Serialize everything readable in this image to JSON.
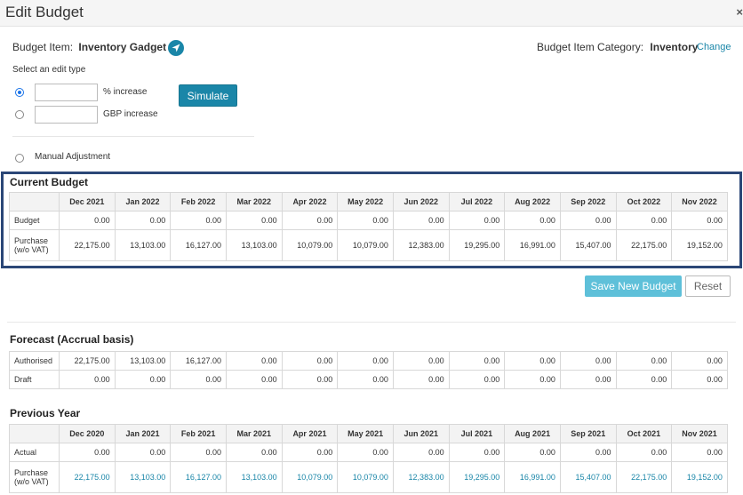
{
  "header": {
    "title": "Edit Budget",
    "close": "×"
  },
  "budget_item": {
    "label": "Budget Item:",
    "value": "Inventory Gadget"
  },
  "category": {
    "label": "Budget Item Category:",
    "value": "Inventory",
    "change": "Change"
  },
  "edit_type": {
    "label": "Select an edit type",
    "pct_label": "% increase",
    "gbp_label": "GBP  increase",
    "pct_value": "",
    "gbp_value": "",
    "simulate": "Simulate",
    "manual": "Manual Adjustment"
  },
  "current_budget": {
    "title": "Current Budget",
    "months": [
      "Dec 2021",
      "Jan 2022",
      "Feb 2022",
      "Mar 2022",
      "Apr 2022",
      "May 2022",
      "Jun 2022",
      "Jul 2022",
      "Aug 2022",
      "Sep 2022",
      "Oct 2022",
      "Nov 2022"
    ],
    "rows": [
      {
        "label": "Budget",
        "values": [
          "0.00",
          "0.00",
          "0.00",
          "0.00",
          "0.00",
          "0.00",
          "0.00",
          "0.00",
          "0.00",
          "0.00",
          "0.00",
          "0.00"
        ]
      },
      {
        "label": "Purchase\n(w/o VAT)",
        "values": [
          "22,175.00",
          "13,103.00",
          "16,127.00",
          "13,103.00",
          "10,079.00",
          "10,079.00",
          "12,383.00",
          "19,295.00",
          "16,991.00",
          "15,407.00",
          "22,175.00",
          "19,152.00"
        ]
      }
    ]
  },
  "actions": {
    "save": "Save New Budget",
    "reset": "Reset"
  },
  "forecast": {
    "title": "Forecast (Accrual basis)",
    "rows": [
      {
        "label": "Authorised",
        "values": [
          "22,175.00",
          "13,103.00",
          "16,127.00",
          "0.00",
          "0.00",
          "0.00",
          "0.00",
          "0.00",
          "0.00",
          "0.00",
          "0.00",
          "0.00"
        ]
      },
      {
        "label": "Draft",
        "values": [
          "0.00",
          "0.00",
          "0.00",
          "0.00",
          "0.00",
          "0.00",
          "0.00",
          "0.00",
          "0.00",
          "0.00",
          "0.00",
          "0.00"
        ]
      }
    ]
  },
  "previous_year": {
    "title": "Previous Year",
    "months": [
      "Dec 2020",
      "Jan 2021",
      "Feb 2021",
      "Mar 2021",
      "Apr 2021",
      "May 2021",
      "Jun 2021",
      "Jul 2021",
      "Aug 2021",
      "Sep 2021",
      "Oct 2021",
      "Nov 2021"
    ],
    "rows": [
      {
        "label": "Actual",
        "values": [
          "0.00",
          "0.00",
          "0.00",
          "0.00",
          "0.00",
          "0.00",
          "0.00",
          "0.00",
          "0.00",
          "0.00",
          "0.00",
          "0.00"
        ]
      },
      {
        "label": "Purchase\n(w/o VAT)",
        "values": [
          "22,175.00",
          "13,103.00",
          "16,127.00",
          "13,103.00",
          "10,079.00",
          "10,079.00",
          "12,383.00",
          "19,295.00",
          "16,991.00",
          "15,407.00",
          "22,175.00",
          "19,152.00"
        ]
      }
    ]
  },
  "colors": {
    "accent": "#1a86a8",
    "frame": "#2b4777",
    "save_button": "#5ec0d9"
  },
  "icons": {
    "budget_item": "send-icon"
  }
}
